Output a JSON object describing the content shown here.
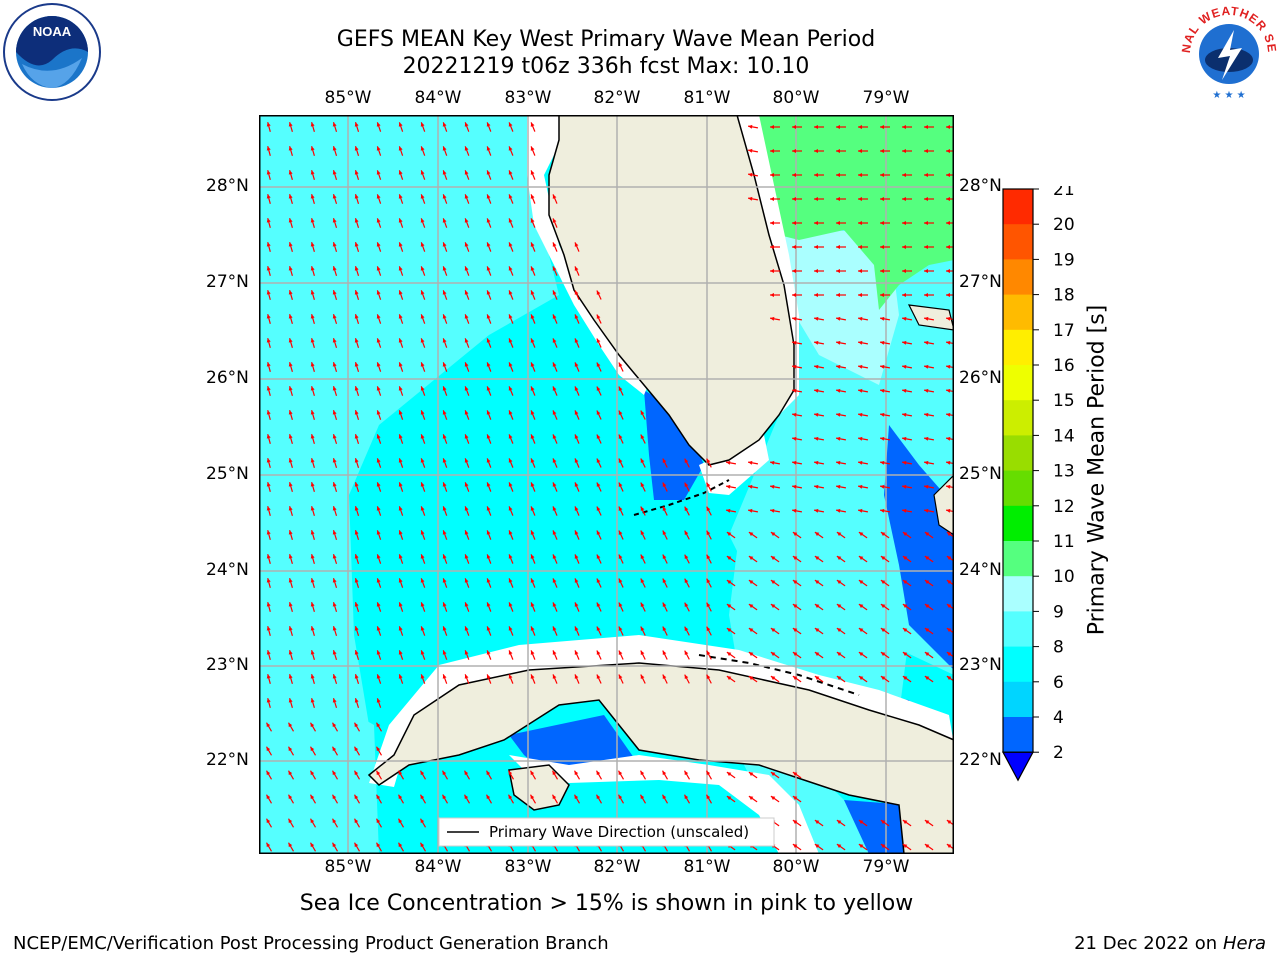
{
  "title_line1": "GEFS MEAN Key West Primary Wave Mean Period",
  "title_line2": "20221219 t06z 336h fcst   Max: 10.10",
  "lon_labels": [
    "85°W",
    "84°W",
    "83°W",
    "82°W",
    "81°W",
    "80°W",
    "79°W"
  ],
  "lat_labels": [
    "28°N",
    "27°N",
    "26°N",
    "25°N",
    "24°N",
    "23°N",
    "22°N"
  ],
  "legend_label": "Primary Wave Direction (unscaled)",
  "colorbar": {
    "title": "Primary Wave Mean Period [s]",
    "ticks": [
      "2",
      "4",
      "6",
      "8",
      "9",
      "10",
      "11",
      "12",
      "13",
      "14",
      "15",
      "16",
      "17",
      "18",
      "19",
      "20",
      "21"
    ],
    "colors": [
      "#0066ff",
      "#00d5ff",
      "#00ffff",
      "#55ffff",
      "#aaffff",
      "#55ff7f",
      "#00ee00",
      "#66dd00",
      "#99dd00",
      "#ccee00",
      "#eeff00",
      "#ffee00",
      "#ffbb00",
      "#ff8800",
      "#ff5500",
      "#ff2a00"
    ],
    "under_color": "#0000ff"
  },
  "map_colors": {
    "land": "#efeedd",
    "ocean_base": "#00ffff",
    "arrow": "#ff0000",
    "grid": "#b0b0b0"
  },
  "logos": {
    "noaa": "NOAA",
    "nws": "NATIONAL WEATHER SERVICE"
  },
  "footer_note": "Sea Ice Concentration > 15% is shown in pink to yellow",
  "footer_left": "NCEP/EMC/Verification Post Processing Product Generation Branch",
  "footer_date": "21 Dec 2022 on",
  "footer_host": "Hera"
}
